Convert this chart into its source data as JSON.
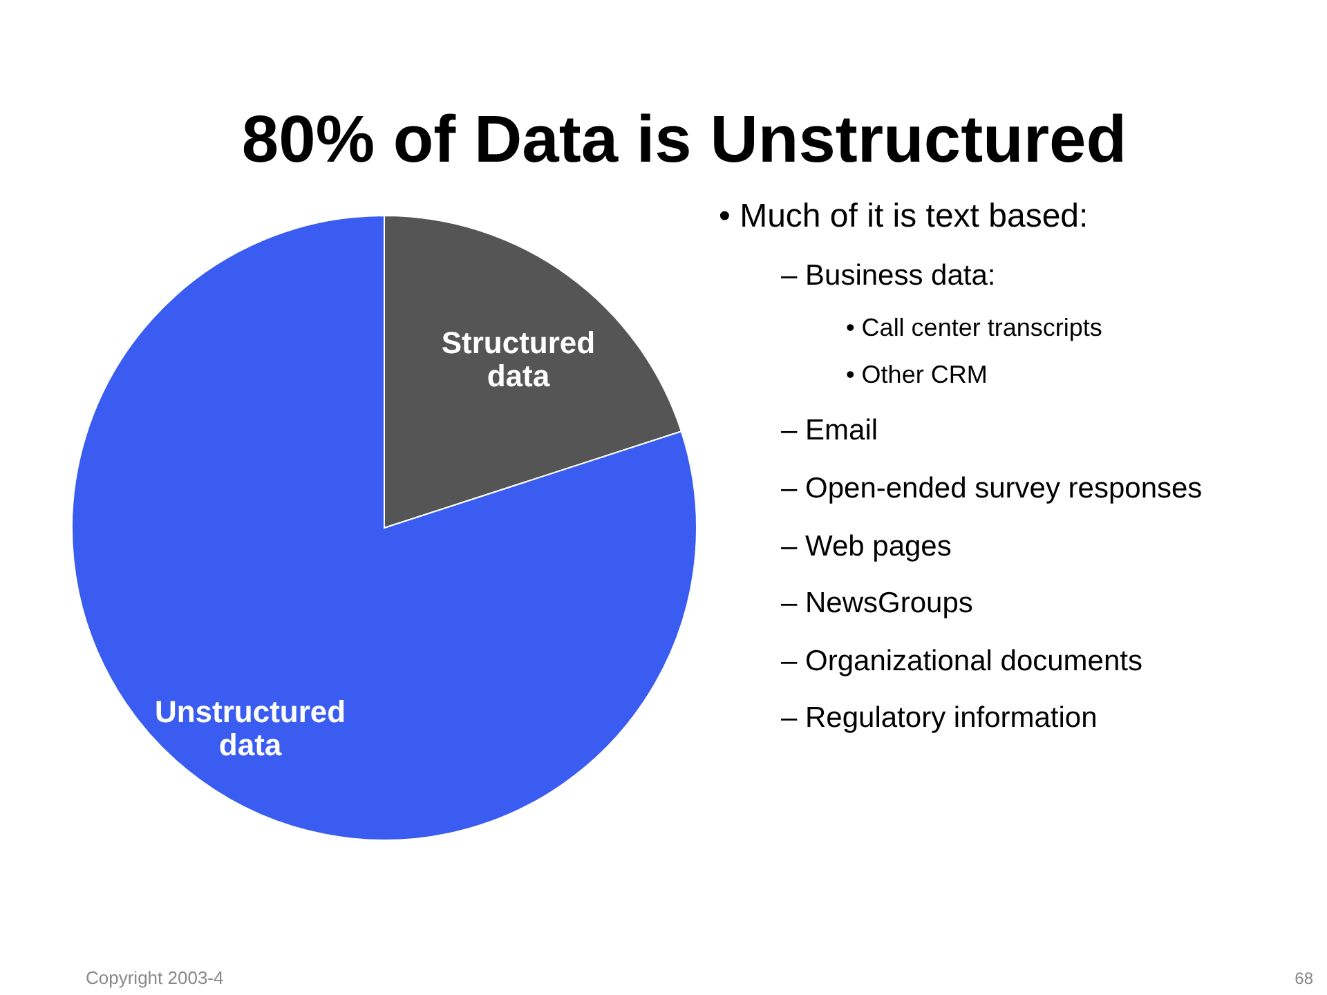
{
  "chart_data": {
    "type": "pie",
    "title": "80% of Data is Unstructured",
    "categories": [
      "Structured data",
      "Unstructured data"
    ],
    "values": [
      20,
      80
    ],
    "colors": [
      "#555555",
      "#3a5cf0"
    ],
    "annotations": [
      "•  Much of it is text based:",
      "–  Business data:",
      "•  Call center transcripts",
      "•  Other CRM",
      "–  Email",
      "–  Open-ended survey responses",
      "–  Web pages",
      "–  NewsGroups",
      "–  Organizational documents",
      "–  Regulatory information",
      "Copyright 2003-4",
      "68"
    ]
  }
}
